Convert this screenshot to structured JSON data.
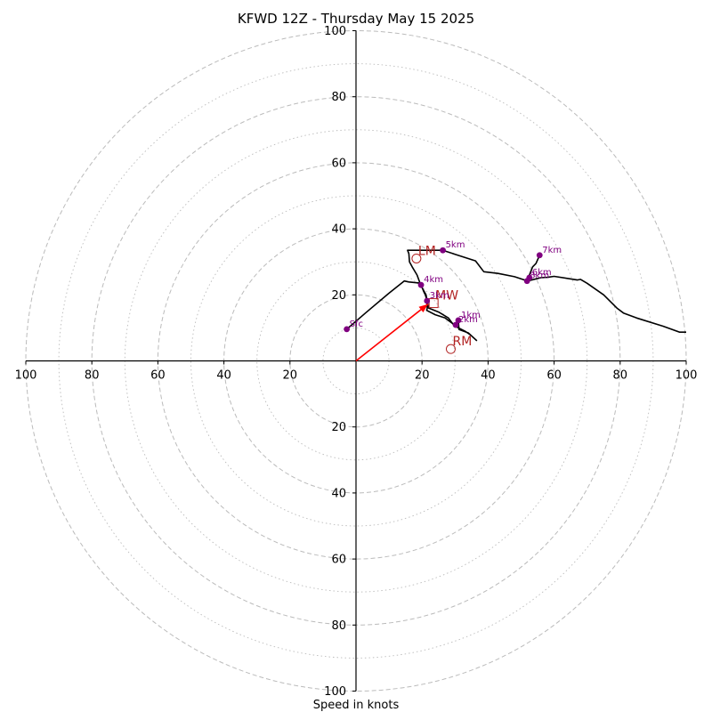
{
  "chart_data": {
    "type": "hodograph",
    "title": "KFWD 12Z - Thursday May 15 2025",
    "xlabel": "Speed in knots",
    "xlim": [
      -100,
      100
    ],
    "ylim": [
      -100,
      100
    ],
    "ring_major": [
      20,
      40,
      60,
      80,
      100
    ],
    "ring_minor": [
      10,
      30,
      50,
      70,
      90
    ],
    "x_ticks": [
      {
        "value": -100,
        "label": "100"
      },
      {
        "value": -80,
        "label": "80"
      },
      {
        "value": -60,
        "label": "60"
      },
      {
        "value": -40,
        "label": "40"
      },
      {
        "value": -20,
        "label": "20"
      },
      {
        "value": 20,
        "label": "20"
      },
      {
        "value": 40,
        "label": "40"
      },
      {
        "value": 60,
        "label": "60"
      },
      {
        "value": 80,
        "label": "80"
      },
      {
        "value": 100,
        "label": "100"
      }
    ],
    "y_ticks": [
      {
        "value": 100,
        "label": "100"
      },
      {
        "value": 80,
        "label": "80"
      },
      {
        "value": 60,
        "label": "60"
      },
      {
        "value": 40,
        "label": "40"
      },
      {
        "value": 20,
        "label": "20"
      },
      {
        "value": -20,
        "label": "20"
      },
      {
        "value": -40,
        "label": "40"
      },
      {
        "value": -60,
        "label": "60"
      },
      {
        "value": -80,
        "label": "80"
      },
      {
        "value": -100,
        "label": "100"
      }
    ],
    "hodograph_line": {
      "color": "#000000",
      "points": [
        [
          -2.8,
          9.6
        ],
        [
          3,
          14.6
        ],
        [
          10,
          20.5
        ],
        [
          14.6,
          24.2
        ],
        [
          16,
          23.9
        ],
        [
          19,
          23.6
        ],
        [
          19.7,
          23
        ],
        [
          20.1,
          22
        ],
        [
          20.5,
          21
        ],
        [
          21,
          20
        ],
        [
          21.4,
          18.7
        ],
        [
          21.4,
          18
        ],
        [
          21.6,
          16
        ],
        [
          21.4,
          15.3
        ],
        [
          24,
          14
        ],
        [
          27,
          13
        ],
        [
          29,
          11.5
        ],
        [
          30.2,
          10.7
        ],
        [
          30.8,
          11.7
        ],
        [
          31,
          12
        ],
        [
          31.2,
          9.5
        ],
        [
          34,
          8.5
        ],
        [
          36.5,
          6.2
        ],
        [
          34.5,
          8
        ],
        [
          33,
          9
        ],
        [
          31,
          10
        ],
        [
          29.5,
          11
        ],
        [
          28,
          13
        ],
        [
          25,
          14.8
        ],
        [
          22,
          16
        ],
        [
          21.6,
          17.8
        ],
        [
          21.2,
          20
        ],
        [
          20.1,
          22
        ],
        [
          19.6,
          23
        ],
        [
          18.5,
          26
        ],
        [
          17,
          28.5
        ],
        [
          16.2,
          30
        ],
        [
          16,
          32.5
        ],
        [
          15.6,
          33.5
        ],
        [
          18,
          33.5
        ],
        [
          22,
          33.5
        ],
        [
          26.3,
          33.5
        ],
        [
          30,
          32.3
        ],
        [
          36.2,
          30.3
        ],
        [
          38.7,
          27
        ],
        [
          43,
          26.5
        ],
        [
          48,
          25.5
        ],
        [
          52,
          24.2
        ],
        [
          56,
          25.2
        ],
        [
          58,
          25.3
        ],
        [
          60,
          25.6
        ],
        [
          67,
          24.5
        ],
        [
          68,
          24.7
        ],
        [
          70,
          23.5
        ],
        [
          75,
          20
        ],
        [
          79,
          16
        ],
        [
          81,
          14.5
        ],
        [
          85,
          13
        ],
        [
          93,
          10.5
        ],
        [
          98,
          8.7
        ],
        [
          100,
          8.7
        ]
      ],
      "secondary": [
        [
          51.8,
          24
        ],
        [
          52.5,
          26
        ],
        [
          53.5,
          28.5
        ],
        [
          54.5,
          29.5
        ],
        [
          55.6,
          32
        ]
      ]
    },
    "height_markers": [
      {
        "label": "Sfc",
        "u": -2.8,
        "v": 9.6
      },
      {
        "label": "1km",
        "u": 31,
        "v": 12.3
      },
      {
        "label": "2km",
        "u": 30.2,
        "v": 10.9
      },
      {
        "label": "3km",
        "u": 21.5,
        "v": 18.2
      },
      {
        "label": "4km",
        "u": 19.7,
        "v": 23
      },
      {
        "label": "5km",
        "u": 26.3,
        "v": 33.5
      },
      {
        "label": "6km",
        "u": 52.5,
        "v": 25.2
      },
      {
        "label": "7km",
        "u": 55.6,
        "v": 32
      },
      {
        "label": "8km",
        "u": 51.8,
        "v": 24.2
      }
    ],
    "storm_motion": [
      {
        "label": "LM",
        "u": 18.3,
        "v": 31
      },
      {
        "label": "RM",
        "u": 28.7,
        "v": 3.6
      },
      {
        "label": "MW",
        "u": 23.5,
        "v": 17.5
      }
    ],
    "mean_wind_vector": {
      "u": 21.8,
      "v": 17.2,
      "color": "#ff0000"
    },
    "marker_color": "#800080",
    "storm_color": "#b22222",
    "grid_color": "#bbbbbb"
  }
}
